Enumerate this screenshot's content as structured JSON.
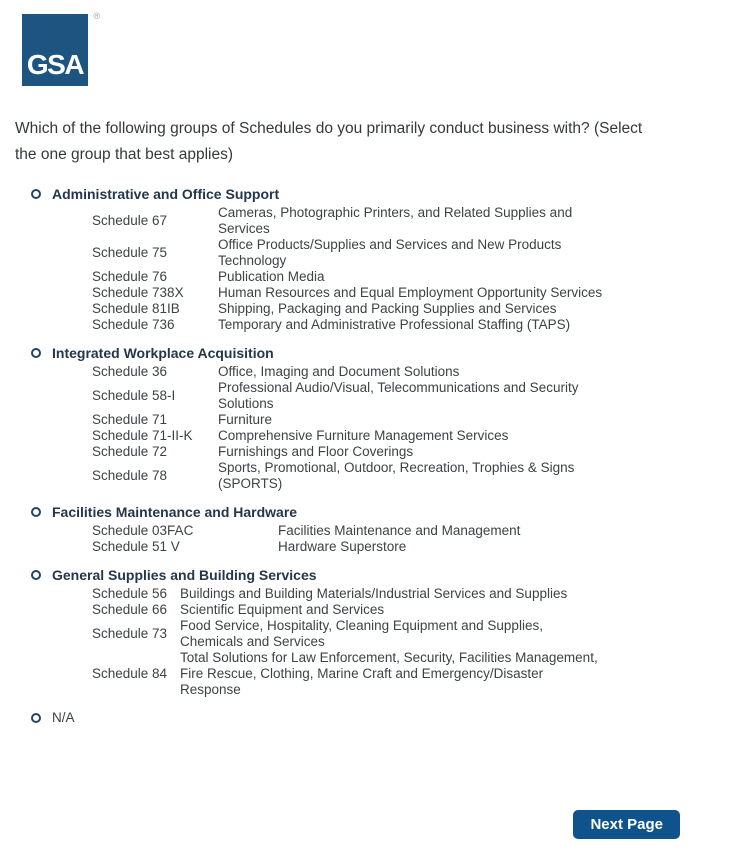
{
  "logo": {
    "text": "GSA",
    "registered_mark": "®"
  },
  "question": "Which of the following groups of Schedules do you primarily conduct business with? (Select\nthe one group that best applies)",
  "groups": [
    {
      "label": "Administrative and Office Support",
      "schedules": [
        {
          "code": "Schedule 67",
          "desc": "Cameras, Photographic Printers, and Related Supplies and\nServices"
        },
        {
          "code": "Schedule 75",
          "desc": "Office Products/Supplies and Services and New Products\nTechnology"
        },
        {
          "code": "Schedule 76",
          "desc": "Publication Media"
        },
        {
          "code": "Schedule 738X",
          "desc": "Human Resources and Equal Employment Opportunity Services"
        },
        {
          "code": "Schedule 81IB",
          "desc": "Shipping, Packaging and Packing Supplies and Services"
        },
        {
          "code": "Schedule 736",
          "desc": "Temporary and Administrative Professional Staffing (TAPS)"
        }
      ]
    },
    {
      "label": "Integrated Workplace Acquisition",
      "schedules": [
        {
          "code": "Schedule 36",
          "desc": "Office, Imaging and Document Solutions"
        },
        {
          "code": "Schedule 58-I",
          "desc": "Professional Audio/Visual, Telecommunications and Security\nSolutions"
        },
        {
          "code": "Schedule 71",
          "desc": "Furniture"
        },
        {
          "code": "Schedule 71-II-K",
          "desc": "Comprehensive Furniture Management Services"
        },
        {
          "code": "Schedule 72",
          "desc": "Furnishings and Floor Coverings"
        },
        {
          "code": "Schedule 78",
          "desc": "Sports, Promotional, Outdoor, Recreation, Trophies & Signs\n(SPORTS)"
        }
      ]
    },
    {
      "label": "Facilities Maintenance and Hardware",
      "schedules": [
        {
          "code": "Schedule 03FAC",
          "desc": "Facilities Maintenance and Management"
        },
        {
          "code": "Schedule 51 V",
          "desc": "Hardware Superstore"
        }
      ]
    },
    {
      "label": "General Supplies and Building Services",
      "schedules": [
        {
          "code": "Schedule 56",
          "desc": "Buildings and Building Materials/Industrial Services and Supplies"
        },
        {
          "code": "Schedule 66",
          "desc": "Scientific Equipment and Services"
        },
        {
          "code": "Schedule 73",
          "desc": "Food Service, Hospitality, Cleaning Equipment and Supplies,\nChemicals and Services"
        },
        {
          "code": "Schedule 84",
          "desc": "Total Solutions for Law Enforcement, Security, Facilities Management,\nFire Rescue, Clothing, Marine Craft and Emergency/Disaster\nResponse"
        }
      ]
    }
  ],
  "na_option": "N/A",
  "next_button": "Next Page",
  "colors": {
    "logo_blue": "#1e5580",
    "button_blue": "#0f538c",
    "radio_ring": "#22456a",
    "heading_text": "#24374a",
    "body_text": "#3d4247"
  }
}
